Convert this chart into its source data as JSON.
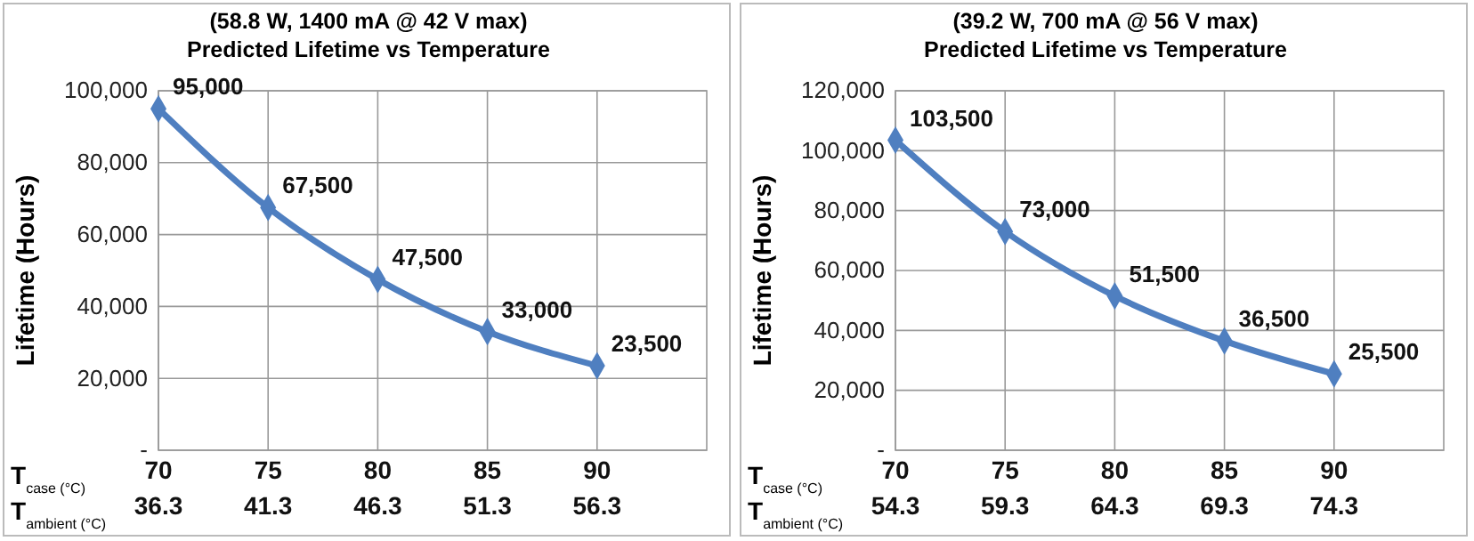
{
  "chart_data": [
    {
      "type": "line",
      "title": "(58.8 W, 1400 mA @ 42 V max)",
      "subtitle": "Predicted Lifetime vs Temperature",
      "ylabel": "Lifetime (Hours)",
      "xlabel": "T$_{case (°C)}$",
      "x2label": "T$_{ambient (°C)}$",
      "x": [
        70,
        75,
        80,
        85,
        90
      ],
      "xlim": [
        70,
        95
      ],
      "xticks": [
        70,
        75,
        80,
        85,
        90
      ],
      "x2lim": [
        36.3,
        61.3
      ],
      "x2ticks": [
        36.3,
        41.3,
        46.3,
        51.3,
        56.3
      ],
      "ylim": [
        0,
        100000
      ],
      "yticks": [
        {
          "value": 0,
          "label": "-"
        },
        {
          "value": 20000,
          "label": "20,000"
        },
        {
          "value": 40000,
          "label": "40,000"
        },
        {
          "value": 60000,
          "label": "60,000"
        },
        {
          "value": 80000,
          "label": "80,000"
        },
        {
          "value": 100000,
          "label": "100,000"
        }
      ],
      "series": [
        {
          "color": "#4f7fc0",
          "values": [
            95000,
            67500,
            47500,
            33000,
            23500
          ],
          "value_labels": [
            "95,000",
            "67,500",
            "47,500",
            "33,000",
            "23,500"
          ]
        }
      ],
      "grid": true,
      "marker": "diamond",
      "line_style": "solid"
    },
    {
      "type": "line",
      "title": "(39.2 W, 700 mA @ 56 V max)",
      "subtitle": "Predicted Lifetime vs Temperature",
      "ylabel": "Lifetime (Hours)",
      "xlabel": "T$_{case (°C)}$",
      "x2label": "T$_{ambient (°C)}$",
      "x": [
        70,
        75,
        80,
        85,
        90
      ],
      "xlim": [
        70,
        95
      ],
      "xticks": [
        70,
        75,
        80,
        85,
        90
      ],
      "x2lim": [
        54.3,
        79.3
      ],
      "x2ticks": [
        54.3,
        59.3,
        64.3,
        69.3,
        74.3
      ],
      "ylim": [
        0,
        120000
      ],
      "yticks": [
        {
          "value": 0,
          "label": "-"
        },
        {
          "value": 20000,
          "label": "20,000"
        },
        {
          "value": 40000,
          "label": "40,000"
        },
        {
          "value": 60000,
          "label": "60,000"
        },
        {
          "value": 80000,
          "label": "80,000"
        },
        {
          "value": 100000,
          "label": "100,000"
        },
        {
          "value": 120000,
          "label": "120,000"
        }
      ],
      "series": [
        {
          "color": "#4f7fc0",
          "values": [
            103500,
            73000,
            51500,
            36500,
            25500
          ],
          "value_labels": [
            "103,500",
            "73,000",
            "51,500",
            "36,500",
            "25,500"
          ]
        }
      ],
      "grid": true,
      "marker": "diamond",
      "line_style": "solid"
    }
  ]
}
